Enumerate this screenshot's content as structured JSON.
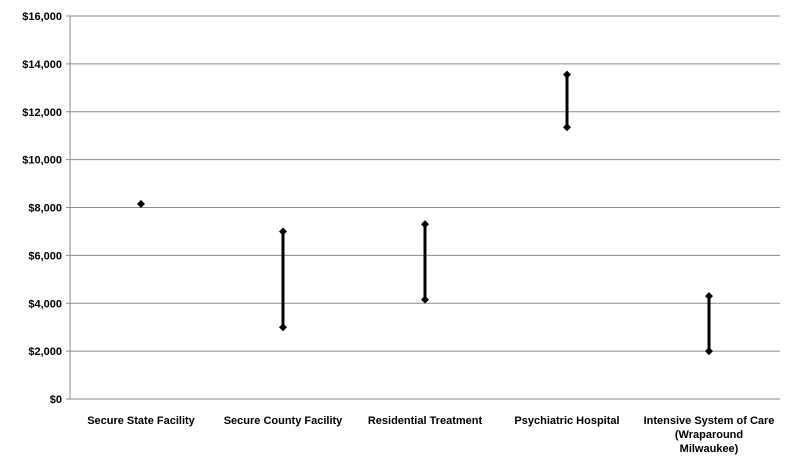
{
  "chart_data": {
    "type": "line",
    "subtype": "high-low range",
    "title": "",
    "xlabel": "",
    "ylabel": "",
    "ylim": [
      0,
      16000
    ],
    "y_ticks": [
      {
        "value": 0,
        "label": "$0"
      },
      {
        "value": 2000,
        "label": "$2,000"
      },
      {
        "value": 4000,
        "label": "$4,000"
      },
      {
        "value": 6000,
        "label": "$6,000"
      },
      {
        "value": 8000,
        "label": "$8,000"
      },
      {
        "value": 10000,
        "label": "$10,000"
      },
      {
        "value": 12000,
        "label": "$12,000"
      },
      {
        "value": 14000,
        "label": "$14,000"
      },
      {
        "value": 16000,
        "label": "$16,000"
      }
    ],
    "grid": true,
    "legend": "none",
    "categories": [
      {
        "lines": [
          "Secure State Facility"
        ],
        "low": 8150,
        "high": 8150
      },
      {
        "lines": [
          "Secure County Facility"
        ],
        "low": 3000,
        "high": 7000
      },
      {
        "lines": [
          "Residential Treatment"
        ],
        "low": 4150,
        "high": 7300
      },
      {
        "lines": [
          "Psychiatric Hospital"
        ],
        "low": 11350,
        "high": 13550
      },
      {
        "lines": [
          "Intensive System of Care",
          "(Wraparound",
          "Milwaukee)"
        ],
        "low": 2000,
        "high": 4300
      }
    ],
    "colors": {
      "marker": "#000000",
      "grid": "#8a8a8a"
    }
  }
}
